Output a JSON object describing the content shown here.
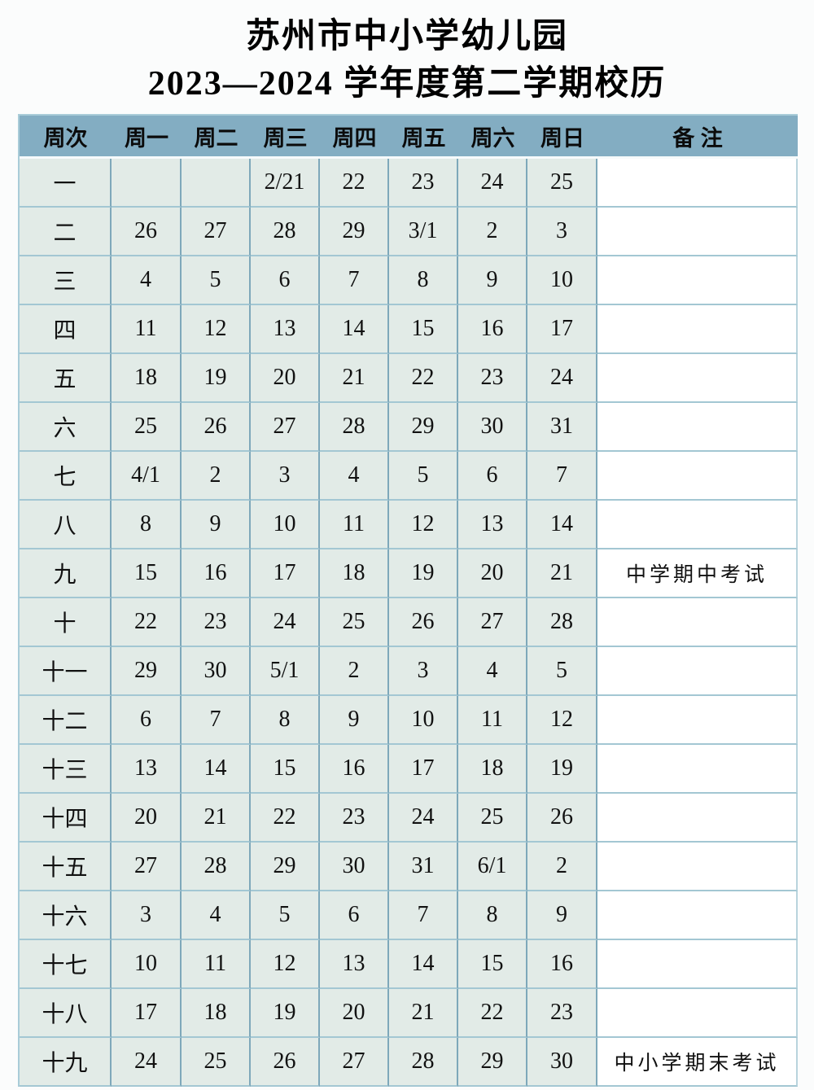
{
  "title": {
    "line1": "苏州市中小学幼儿园",
    "line2": "2023—2024 学年度第二学期校历"
  },
  "colors": {
    "header_bg": "#83adc2",
    "cell_bg": "#e2ebe7",
    "note_bg": "#ffffff",
    "grid_vertical": "#7ea8ba",
    "grid_horizontal": "#a3c7d3",
    "text": "#000000"
  },
  "table": {
    "headers": [
      "周次",
      "周一",
      "周二",
      "周三",
      "周四",
      "周五",
      "周六",
      "周日",
      "备 注"
    ],
    "rows": [
      {
        "week": "一",
        "days": [
          "",
          "",
          "2/21",
          "22",
          "23",
          "24",
          "25"
        ],
        "note": ""
      },
      {
        "week": "二",
        "days": [
          "26",
          "27",
          "28",
          "29",
          "3/1",
          "2",
          "3"
        ],
        "note": ""
      },
      {
        "week": "三",
        "days": [
          "4",
          "5",
          "6",
          "7",
          "8",
          "9",
          "10"
        ],
        "note": ""
      },
      {
        "week": "四",
        "days": [
          "11",
          "12",
          "13",
          "14",
          "15",
          "16",
          "17"
        ],
        "note": ""
      },
      {
        "week": "五",
        "days": [
          "18",
          "19",
          "20",
          "21",
          "22",
          "23",
          "24"
        ],
        "note": ""
      },
      {
        "week": "六",
        "days": [
          "25",
          "26",
          "27",
          "28",
          "29",
          "30",
          "31"
        ],
        "note": ""
      },
      {
        "week": "七",
        "days": [
          "4/1",
          "2",
          "3",
          "4",
          "5",
          "6",
          "7"
        ],
        "note": ""
      },
      {
        "week": "八",
        "days": [
          "8",
          "9",
          "10",
          "11",
          "12",
          "13",
          "14"
        ],
        "note": ""
      },
      {
        "week": "九",
        "days": [
          "15",
          "16",
          "17",
          "18",
          "19",
          "20",
          "21"
        ],
        "note": "中学期中考试"
      },
      {
        "week": "十",
        "days": [
          "22",
          "23",
          "24",
          "25",
          "26",
          "27",
          "28"
        ],
        "note": ""
      },
      {
        "week": "十一",
        "days": [
          "29",
          "30",
          "5/1",
          "2",
          "3",
          "4",
          "5"
        ],
        "note": ""
      },
      {
        "week": "十二",
        "days": [
          "6",
          "7",
          "8",
          "9",
          "10",
          "11",
          "12"
        ],
        "note": ""
      },
      {
        "week": "十三",
        "days": [
          "13",
          "14",
          "15",
          "16",
          "17",
          "18",
          "19"
        ],
        "note": ""
      },
      {
        "week": "十四",
        "days": [
          "20",
          "21",
          "22",
          "23",
          "24",
          "25",
          "26"
        ],
        "note": ""
      },
      {
        "week": "十五",
        "days": [
          "27",
          "28",
          "29",
          "30",
          "31",
          "6/1",
          "2"
        ],
        "note": ""
      },
      {
        "week": "十六",
        "days": [
          "3",
          "4",
          "5",
          "6",
          "7",
          "8",
          "9"
        ],
        "note": ""
      },
      {
        "week": "十七",
        "days": [
          "10",
          "11",
          "12",
          "13",
          "14",
          "15",
          "16"
        ],
        "note": ""
      },
      {
        "week": "十八",
        "days": [
          "17",
          "18",
          "19",
          "20",
          "21",
          "22",
          "23"
        ],
        "note": ""
      },
      {
        "week": "十九",
        "days": [
          "24",
          "25",
          "26",
          "27",
          "28",
          "29",
          "30"
        ],
        "note": "中小学期末考试"
      }
    ]
  }
}
